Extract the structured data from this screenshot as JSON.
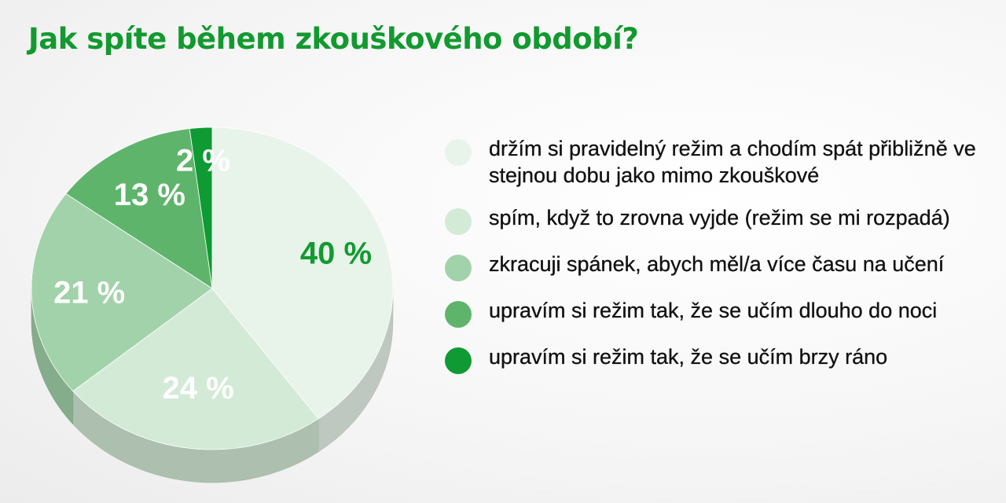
{
  "chart_data": {
    "type": "pie",
    "title": "Jak spíte během zkouškového období?",
    "slices": [
      {
        "label": "držím si pravidelný režim a chodím spát přibližně ve stejnou dobu jako mimo zkouškové",
        "value": 40,
        "value_label": "40 %",
        "color": "#e8f4ea",
        "label_color": "#139a32"
      },
      {
        "label": "spím, když to zrovna vyjde (režim se mi rozpadá)",
        "value": 24,
        "value_label": "24 %",
        "color": "#d3ead6",
        "label_color": "#ffffff"
      },
      {
        "label": "zkracuji spánek, abych měl/a více času na učení",
        "value": 21,
        "value_label": "21 %",
        "color": "#a2d2a9",
        "label_color": "#ffffff"
      },
      {
        "label": "upravím si režim tak, že se učím dlouho do noci",
        "value": 13,
        "value_label": "13 %",
        "color": "#5fb46c",
        "label_color": "#ffffff"
      },
      {
        "label": "upravím si režim tak, že se učím brzy ráno",
        "value": 2,
        "value_label": "2 %",
        "color": "#0f9a34",
        "label_color": "#ffffff"
      }
    ],
    "legend_position": "right"
  }
}
